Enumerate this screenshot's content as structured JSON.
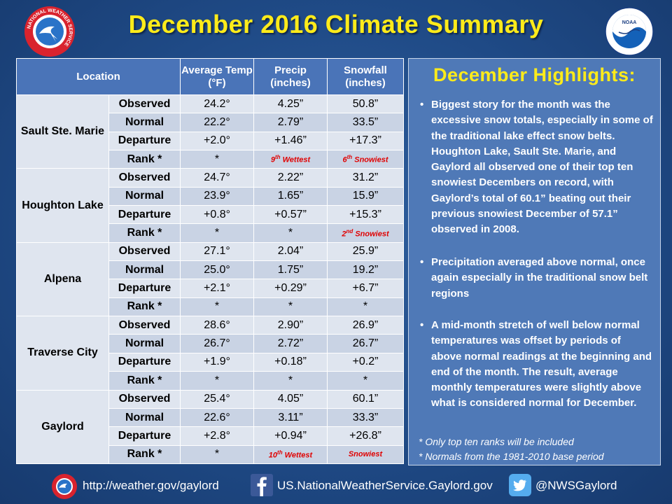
{
  "title": "December 2016 Climate Summary",
  "logos": {
    "left": "nws-logo",
    "right": "noaa-logo",
    "nws_ring_text": "NATIONAL WEATHER SERVICE",
    "noaa_text": "NOAA"
  },
  "table": {
    "headers": [
      "Location",
      "Average Temp (°F)",
      "Precip (inches)",
      "Snowfall (inches)"
    ],
    "locations": [
      {
        "name": "Sault Ste. Marie",
        "rows": [
          {
            "label": "Observed",
            "temp": "24.2°",
            "precip": "4.25”",
            "snow": "50.8”"
          },
          {
            "label": "Normal",
            "temp": "22.2°",
            "precip": "2.79”",
            "snow": "33.5”"
          },
          {
            "label": "Departure",
            "temp": "+2.0°",
            "precip": "+1.46”",
            "snow": "+17.3”"
          },
          {
            "label": "Rank *",
            "temp": "*",
            "precip": "9th Wettest",
            "snow": "6th Snowiest"
          }
        ]
      },
      {
        "name": "Houghton Lake",
        "rows": [
          {
            "label": "Observed",
            "temp": "24.7°",
            "precip": "2.22”",
            "snow": "31.2”"
          },
          {
            "label": "Normal",
            "temp": "23.9°",
            "precip": "1.65”",
            "snow": "15.9”"
          },
          {
            "label": "Departure",
            "temp": "+0.8°",
            "precip": "+0.57”",
            "snow": "+15.3”"
          },
          {
            "label": "Rank *",
            "temp": "*",
            "precip": "*",
            "snow": "2nd Snowiest"
          }
        ]
      },
      {
        "name": "Alpena",
        "rows": [
          {
            "label": "Observed",
            "temp": "27.1°",
            "precip": "2.04”",
            "snow": "25.9”"
          },
          {
            "label": "Normal",
            "temp": "25.0°",
            "precip": "1.75”",
            "snow": "19.2”"
          },
          {
            "label": "Departure",
            "temp": "+2.1°",
            "precip": "+0.29”",
            "snow": "+6.7”"
          },
          {
            "label": "Rank *",
            "temp": "*",
            "precip": "*",
            "snow": "*"
          }
        ]
      },
      {
        "name": "Traverse City",
        "rows": [
          {
            "label": "Observed",
            "temp": "28.6°",
            "precip": "2.90”",
            "snow": "26.9”"
          },
          {
            "label": "Normal",
            "temp": "26.7°",
            "precip": "2.72”",
            "snow": "26.7”"
          },
          {
            "label": "Departure",
            "temp": "+1.9°",
            "precip": "+0.18”",
            "snow": "+0.2”"
          },
          {
            "label": "Rank *",
            "temp": "*",
            "precip": "*",
            "snow": "*"
          }
        ]
      },
      {
        "name": "Gaylord",
        "rows": [
          {
            "label": "Observed",
            "temp": "25.4°",
            "precip": "4.05”",
            "snow": "60.1”"
          },
          {
            "label": "Normal",
            "temp": "22.6°",
            "precip": "3.11”",
            "snow": "33.3”"
          },
          {
            "label": "Departure",
            "temp": "+2.8°",
            "precip": "+0.94”",
            "snow": "+26.8”"
          },
          {
            "label": "Rank *",
            "temp": "*",
            "precip": "10th Wettest",
            "snow": "Snowiest"
          }
        ]
      }
    ]
  },
  "highlights": {
    "title": "December Highlights:",
    "bullets": [
      "Biggest story for the month was the excessive snow totals, especially in some of the traditional lake effect snow belts.  Houghton Lake, Sault Ste. Marie, and Gaylord all observed one of their top ten snowiest Decembers on record, with Gaylord’s total of 60.1” beating out their previous snowiest December  of 57.1” observed in 2008.",
      "Precipitation averaged above normal, once again especially in the traditional snow belt regions",
      "A mid-month stretch of well below normal temperatures was offset by periods of above normal readings at the beginning and end of the month. The result, average monthly temperatures were slightly above what is considered normal for December."
    ],
    "notes": [
      "*  Only top ten ranks will be included",
      "*  Normals from the 1981-2010 base period"
    ]
  },
  "footer": {
    "website": "http://weather.gov/gaylord",
    "facebook": "US.NationalWeatherService.Gaylord.gov",
    "twitter": "@NWSGaylord"
  },
  "colors": {
    "title": "#ffeb1a",
    "header": "#4a74b8",
    "rank_red": "#e00000",
    "panel": "#4f79b7"
  }
}
